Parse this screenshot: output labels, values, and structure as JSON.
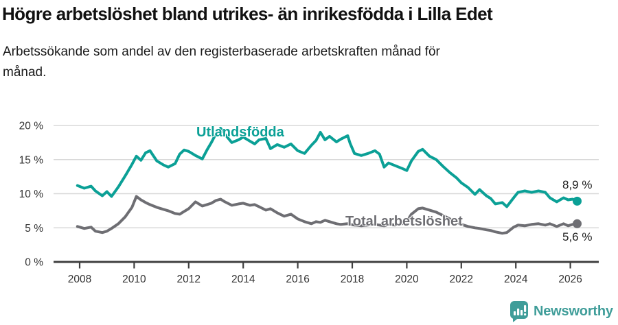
{
  "header": {
    "title": "Högre arbetslöshet bland utrikes- än inrikesfödda i Lilla Edet",
    "subtitle": "Arbetssökande som andel av den registerbaserade arbetskraften månad för månad.",
    "subtitle_lines": [
      "Arbetssökande som andel av den registerbaserade arbetskraften månad för",
      "månad."
    ]
  },
  "footer": {
    "brand": "Newsworthy",
    "logo_icon": "bar-chart-speech-bubble"
  },
  "colors": {
    "foreign_line": "#0ba096",
    "total_line": "#6e6e73",
    "grid": "#d8d8d8",
    "axis": "#3f3f3f",
    "axis_text": "#333333",
    "text": "#1a1a1a",
    "brand_teal": "#3f9d99"
  },
  "chart_data": {
    "type": "line",
    "title": "Högre arbetslöshet bland utrikes- än inrikesfödda i Lilla Edet",
    "xlabel": "",
    "ylabel": "",
    "unit": "%",
    "grid": true,
    "legend_position": "inline-labels",
    "xlim": [
      2007.0,
      2027.1
    ],
    "ylim": [
      0,
      20
    ],
    "x_ticks": [
      2008,
      2010,
      2012,
      2014,
      2016,
      2018,
      2020,
      2022,
      2024,
      2026
    ],
    "y_ticks": [
      {
        "value": 0,
        "label": "0 %"
      },
      {
        "value": 5,
        "label": "5 %"
      },
      {
        "value": 10,
        "label": "10 %"
      },
      {
        "value": 15,
        "label": "15 %"
      },
      {
        "value": 20,
        "label": "20 %"
      }
    ],
    "x": [
      2007.92,
      2008.17,
      2008.42,
      2008.58,
      2008.83,
      2009.0,
      2009.17,
      2009.42,
      2009.67,
      2009.92,
      2010.08,
      2010.25,
      2010.42,
      2010.58,
      2010.83,
      2011.08,
      2011.25,
      2011.5,
      2011.67,
      2011.83,
      2012.0,
      2012.25,
      2012.5,
      2012.67,
      2012.83,
      2013.0,
      2013.17,
      2013.33,
      2013.58,
      2013.83,
      2014.0,
      2014.25,
      2014.42,
      2014.58,
      2014.83,
      2015.0,
      2015.25,
      2015.5,
      2015.75,
      2016.0,
      2016.25,
      2016.5,
      2016.67,
      2016.83,
      2017.0,
      2017.17,
      2017.42,
      2017.58,
      2017.83,
      2017.92,
      2018.08,
      2018.33,
      2018.58,
      2018.83,
      2019.0,
      2019.17,
      2019.33,
      2019.58,
      2019.83,
      2020.0,
      2020.17,
      2020.42,
      2020.58,
      2020.83,
      2021.08,
      2021.33,
      2021.58,
      2021.83,
      2022.0,
      2022.25,
      2022.5,
      2022.67,
      2022.92,
      2023.08,
      2023.25,
      2023.5,
      2023.67,
      2023.92,
      2024.08,
      2024.33,
      2024.58,
      2024.83,
      2025.08,
      2025.25,
      2025.5,
      2025.75,
      2025.92,
      2026.08,
      2026.25
    ],
    "series": [
      {
        "id": "utlandsfodda",
        "name": "Utlandsfödda",
        "color": "#0ba096",
        "end_label": "8,9 %",
        "end_value": 8.9,
        "values": [
          11.2,
          10.8,
          11.1,
          10.4,
          9.7,
          10.3,
          9.6,
          11.0,
          12.6,
          14.3,
          15.5,
          14.9,
          16.0,
          16.3,
          14.8,
          14.2,
          13.9,
          14.4,
          15.8,
          16.4,
          16.2,
          15.6,
          15.1,
          16.4,
          17.5,
          18.8,
          19.6,
          18.7,
          17.5,
          17.9,
          18.3,
          17.7,
          17.3,
          17.9,
          18.1,
          16.6,
          17.2,
          16.8,
          17.3,
          16.3,
          15.9,
          17.1,
          17.8,
          19.0,
          17.9,
          18.4,
          17.6,
          18.0,
          18.5,
          17.4,
          15.9,
          15.6,
          15.9,
          16.3,
          15.8,
          13.9,
          14.5,
          14.1,
          13.7,
          13.4,
          14.8,
          16.2,
          16.5,
          15.5,
          15.0,
          14.0,
          13.1,
          12.3,
          11.6,
          10.9,
          9.9,
          10.6,
          9.7,
          9.3,
          8.5,
          8.7,
          8.1,
          9.4,
          10.2,
          10.4,
          10.2,
          10.4,
          10.2,
          9.4,
          8.8,
          9.4,
          9.1,
          9.2,
          8.9
        ]
      },
      {
        "id": "total",
        "name": "Total arbetslöshet",
        "color": "#6e6e73",
        "end_label": "5,6 %",
        "end_value": 5.6,
        "values": [
          5.2,
          4.9,
          5.1,
          4.5,
          4.3,
          4.5,
          4.9,
          5.6,
          6.6,
          8.0,
          9.6,
          9.1,
          8.7,
          8.4,
          8.0,
          7.7,
          7.5,
          7.1,
          7.0,
          7.4,
          7.8,
          8.8,
          8.2,
          8.4,
          8.6,
          9.0,
          9.2,
          8.8,
          8.3,
          8.5,
          8.6,
          8.3,
          8.4,
          8.1,
          7.6,
          7.8,
          7.2,
          6.7,
          7.0,
          6.3,
          5.9,
          5.6,
          5.9,
          5.8,
          6.1,
          5.9,
          5.6,
          5.5,
          5.6,
          5.5,
          5.4,
          5.3,
          5.4,
          5.5,
          5.4,
          5.3,
          5.5,
          5.4,
          5.6,
          5.9,
          7.0,
          7.8,
          7.9,
          7.6,
          7.3,
          6.8,
          6.3,
          5.8,
          5.5,
          5.2,
          5.0,
          4.9,
          4.7,
          4.6,
          4.4,
          4.2,
          4.3,
          5.1,
          5.4,
          5.3,
          5.5,
          5.6,
          5.4,
          5.6,
          5.2,
          5.6,
          5.3,
          5.5,
          5.6
        ]
      }
    ]
  }
}
